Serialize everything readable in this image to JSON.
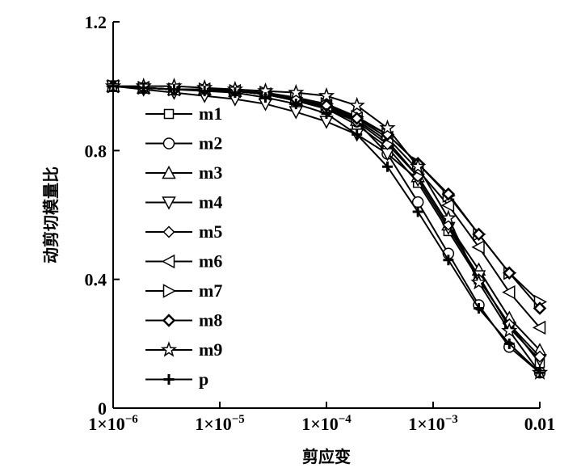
{
  "chart_data": {
    "type": "line",
    "title": "",
    "xlabel": "剪应变",
    "ylabel": "动剪切模量比",
    "xscale": "log",
    "xlim": [
      1e-06,
      0.01
    ],
    "ylim": [
      0,
      1.2
    ],
    "x_ticks": [
      {
        "value": 1e-06,
        "base": "1×10",
        "exp": "−6"
      },
      {
        "value": 1e-05,
        "base": "1×10",
        "exp": "−5"
      },
      {
        "value": 0.0001,
        "base": "1×10",
        "exp": "−4"
      },
      {
        "value": 0.001,
        "base": "1×10",
        "exp": "−3"
      },
      {
        "value": 0.01,
        "base": "0.01",
        "exp": ""
      }
    ],
    "y_ticks": [
      {
        "value": 0,
        "label": "0"
      },
      {
        "value": 0.4,
        "label": "0.4"
      },
      {
        "value": 0.8,
        "label": "0.8"
      },
      {
        "value": 1.2,
        "label": "1.2"
      }
    ],
    "legend_position": "left-middle",
    "x": [
      1e-06,
      1.93e-06,
      3.73e-06,
      7.2e-06,
      1.39e-05,
      2.68e-05,
      5.18e-05,
      0.0001,
      0.000193,
      0.000373,
      0.00072,
      0.00139,
      0.00268,
      0.00518,
      0.01
    ],
    "series": [
      {
        "name": "m1",
        "marker": "square",
        "values": [
          1.0,
          0.995,
          0.99,
          0.99,
          0.985,
          0.975,
          0.955,
          0.93,
          0.88,
          0.81,
          0.7,
          0.55,
          0.4,
          0.26,
          0.14
        ]
      },
      {
        "name": "m2",
        "marker": "circle",
        "values": [
          1.0,
          0.995,
          0.99,
          0.99,
          0.985,
          0.975,
          0.955,
          0.93,
          0.89,
          0.79,
          0.64,
          0.48,
          0.32,
          0.19,
          0.11
        ]
      },
      {
        "name": "m3",
        "marker": "triangle-up",
        "values": [
          1.0,
          0.995,
          0.99,
          0.99,
          0.985,
          0.975,
          0.96,
          0.935,
          0.895,
          0.83,
          0.72,
          0.57,
          0.43,
          0.28,
          0.18
        ]
      },
      {
        "name": "m4",
        "marker": "triangle-down",
        "values": [
          1.0,
          0.99,
          0.98,
          0.97,
          0.96,
          0.945,
          0.92,
          0.89,
          0.85,
          0.79,
          0.71,
          0.56,
          0.41,
          0.25,
          0.15
        ]
      },
      {
        "name": "m5",
        "marker": "diamond",
        "values": [
          1.0,
          0.995,
          0.99,
          0.99,
          0.985,
          0.975,
          0.955,
          0.93,
          0.89,
          0.82,
          0.72,
          0.57,
          0.4,
          0.26,
          0.16
        ]
      },
      {
        "name": "m6",
        "marker": "triangle-left",
        "values": [
          1.0,
          0.995,
          0.99,
          0.99,
          0.985,
          0.975,
          0.96,
          0.94,
          0.9,
          0.84,
          0.74,
          0.63,
          0.5,
          0.36,
          0.25
        ]
      },
      {
        "name": "m7",
        "marker": "triangle-right",
        "values": [
          1.0,
          0.995,
          0.99,
          0.99,
          0.985,
          0.98,
          0.965,
          0.945,
          0.905,
          0.85,
          0.76,
          0.66,
          0.54,
          0.42,
          0.33
        ]
      },
      {
        "name": "m8",
        "marker": "diamond-bold",
        "values": [
          1.0,
          0.995,
          0.99,
          0.99,
          0.985,
          0.975,
          0.96,
          0.94,
          0.9,
          0.85,
          0.76,
          0.665,
          0.54,
          0.42,
          0.31
        ]
      },
      {
        "name": "m9",
        "marker": "star",
        "values": [
          1.0,
          1.0,
          1.0,
          0.995,
          0.99,
          0.985,
          0.98,
          0.97,
          0.94,
          0.87,
          0.75,
          0.59,
          0.39,
          0.24,
          0.11
        ]
      },
      {
        "name": "p",
        "marker": "plus",
        "values": [
          1.0,
          0.995,
          0.99,
          0.985,
          0.98,
          0.965,
          0.945,
          0.915,
          0.85,
          0.75,
          0.61,
          0.46,
          0.31,
          0.2,
          0.11
        ]
      }
    ]
  }
}
